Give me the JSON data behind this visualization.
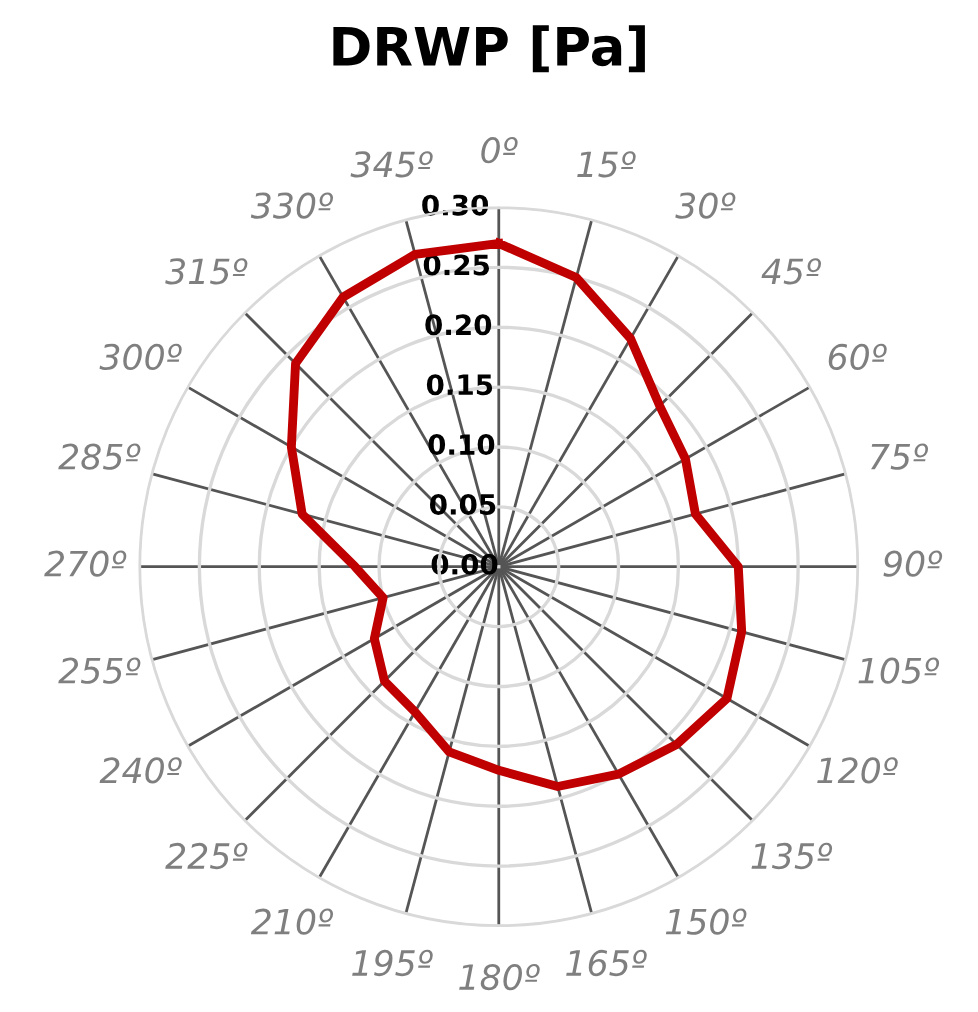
{
  "chart_data": {
    "type": "radar",
    "title": "DRWP [Pa]",
    "categories": [
      "0º",
      "15º",
      "30º",
      "45º",
      "60º",
      "75º",
      "90º",
      "105º",
      "120º",
      "135º",
      "150º",
      "165º",
      "180º",
      "195º",
      "210º",
      "225º",
      "240º",
      "255º",
      "270º",
      "285º",
      "300º",
      "315º",
      "330º",
      "345º"
    ],
    "series": [
      {
        "color": "#c00000",
        "values": [
          0.27,
          0.25,
          0.22,
          0.19,
          0.18,
          0.17,
          0.2,
          0.21,
          0.22,
          0.21,
          0.2,
          0.19,
          0.17,
          0.16,
          0.14,
          0.135,
          0.12,
          0.1,
          0.12,
          0.17,
          0.2,
          0.24,
          0.26,
          0.27
        ]
      }
    ],
    "ylim": [
      0,
      0.3
    ],
    "yticks": [
      {
        "value": 0,
        "label": "0.00"
      },
      {
        "value": 0.05,
        "label": "0.05"
      },
      {
        "value": 0.1,
        "label": "0.10"
      },
      {
        "value": 0.15,
        "label": "0.15"
      },
      {
        "value": 0.2,
        "label": "0.20"
      },
      {
        "value": 0.25,
        "label": "0.25"
      },
      {
        "value": 0.3,
        "label": "0.30"
      }
    ],
    "grid": true,
    "marker": "none",
    "line_style": "solid"
  }
}
